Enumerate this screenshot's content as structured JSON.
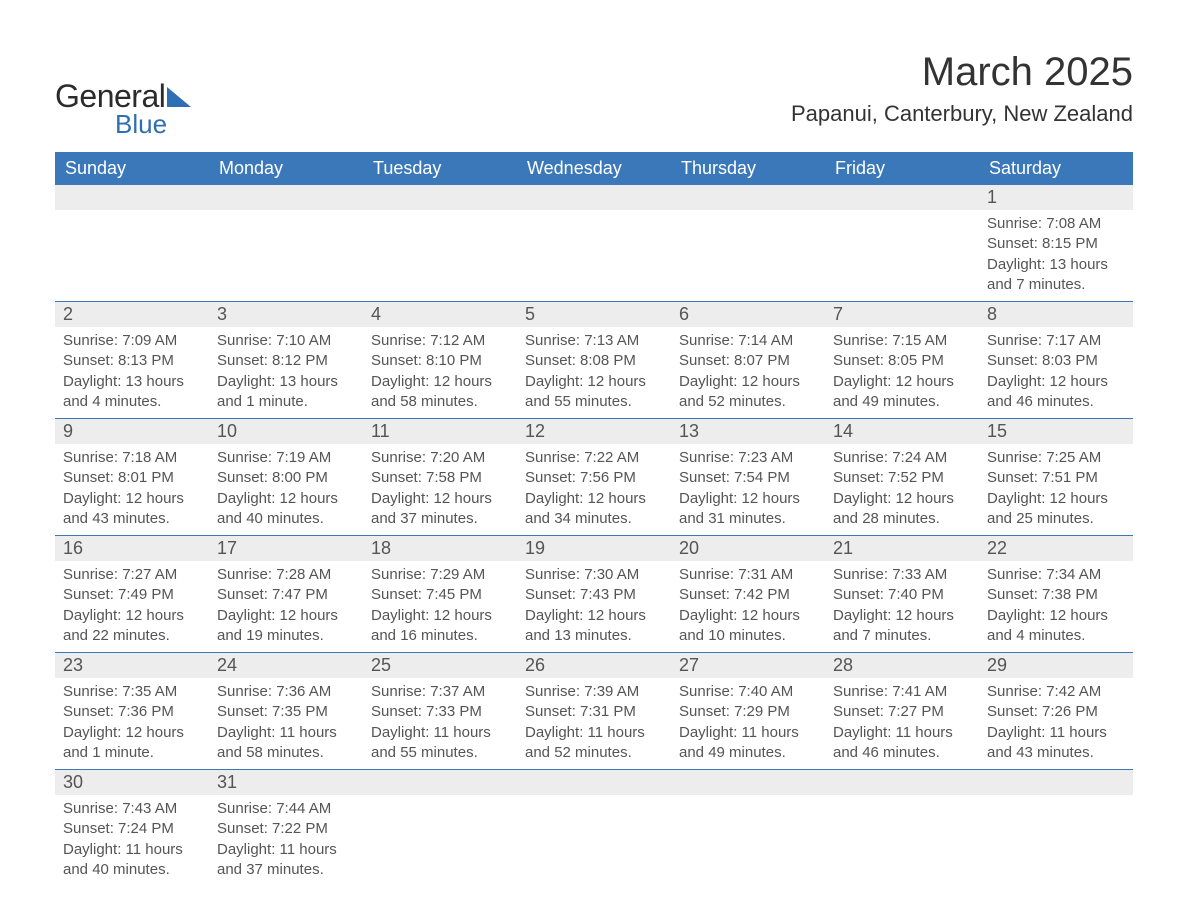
{
  "logo": {
    "text_general": "General",
    "text_blue": "Blue"
  },
  "header": {
    "month_title": "March 2025",
    "location": "Papanui, Canterbury, New Zealand"
  },
  "styling": {
    "header_bg": "#3b78ba",
    "header_text": "#ffffff",
    "daynum_bg": "#ededed",
    "text_color": "#555555",
    "row_divider": "#3b78ba",
    "page_bg": "#ffffff",
    "logo_accent": "#2f6fb3",
    "font_family": "Arial",
    "month_title_fontsize": 40,
    "location_fontsize": 22,
    "dayheader_fontsize": 18,
    "daynum_fontsize": 18,
    "detail_fontsize": 15
  },
  "day_headers": [
    "Sunday",
    "Monday",
    "Tuesday",
    "Wednesday",
    "Thursday",
    "Friday",
    "Saturday"
  ],
  "weeks": [
    [
      null,
      null,
      null,
      null,
      null,
      null,
      {
        "n": "1",
        "sr": "Sunrise: 7:08 AM",
        "ss": "Sunset: 8:15 PM",
        "dl": "Daylight: 13 hours and 7 minutes."
      }
    ],
    [
      {
        "n": "2",
        "sr": "Sunrise: 7:09 AM",
        "ss": "Sunset: 8:13 PM",
        "dl": "Daylight: 13 hours and 4 minutes."
      },
      {
        "n": "3",
        "sr": "Sunrise: 7:10 AM",
        "ss": "Sunset: 8:12 PM",
        "dl": "Daylight: 13 hours and 1 minute."
      },
      {
        "n": "4",
        "sr": "Sunrise: 7:12 AM",
        "ss": "Sunset: 8:10 PM",
        "dl": "Daylight: 12 hours and 58 minutes."
      },
      {
        "n": "5",
        "sr": "Sunrise: 7:13 AM",
        "ss": "Sunset: 8:08 PM",
        "dl": "Daylight: 12 hours and 55 minutes."
      },
      {
        "n": "6",
        "sr": "Sunrise: 7:14 AM",
        "ss": "Sunset: 8:07 PM",
        "dl": "Daylight: 12 hours and 52 minutes."
      },
      {
        "n": "7",
        "sr": "Sunrise: 7:15 AM",
        "ss": "Sunset: 8:05 PM",
        "dl": "Daylight: 12 hours and 49 minutes."
      },
      {
        "n": "8",
        "sr": "Sunrise: 7:17 AM",
        "ss": "Sunset: 8:03 PM",
        "dl": "Daylight: 12 hours and 46 minutes."
      }
    ],
    [
      {
        "n": "9",
        "sr": "Sunrise: 7:18 AM",
        "ss": "Sunset: 8:01 PM",
        "dl": "Daylight: 12 hours and 43 minutes."
      },
      {
        "n": "10",
        "sr": "Sunrise: 7:19 AM",
        "ss": "Sunset: 8:00 PM",
        "dl": "Daylight: 12 hours and 40 minutes."
      },
      {
        "n": "11",
        "sr": "Sunrise: 7:20 AM",
        "ss": "Sunset: 7:58 PM",
        "dl": "Daylight: 12 hours and 37 minutes."
      },
      {
        "n": "12",
        "sr": "Sunrise: 7:22 AM",
        "ss": "Sunset: 7:56 PM",
        "dl": "Daylight: 12 hours and 34 minutes."
      },
      {
        "n": "13",
        "sr": "Sunrise: 7:23 AM",
        "ss": "Sunset: 7:54 PM",
        "dl": "Daylight: 12 hours and 31 minutes."
      },
      {
        "n": "14",
        "sr": "Sunrise: 7:24 AM",
        "ss": "Sunset: 7:52 PM",
        "dl": "Daylight: 12 hours and 28 minutes."
      },
      {
        "n": "15",
        "sr": "Sunrise: 7:25 AM",
        "ss": "Sunset: 7:51 PM",
        "dl": "Daylight: 12 hours and 25 minutes."
      }
    ],
    [
      {
        "n": "16",
        "sr": "Sunrise: 7:27 AM",
        "ss": "Sunset: 7:49 PM",
        "dl": "Daylight: 12 hours and 22 minutes."
      },
      {
        "n": "17",
        "sr": "Sunrise: 7:28 AM",
        "ss": "Sunset: 7:47 PM",
        "dl": "Daylight: 12 hours and 19 minutes."
      },
      {
        "n": "18",
        "sr": "Sunrise: 7:29 AM",
        "ss": "Sunset: 7:45 PM",
        "dl": "Daylight: 12 hours and 16 minutes."
      },
      {
        "n": "19",
        "sr": "Sunrise: 7:30 AM",
        "ss": "Sunset: 7:43 PM",
        "dl": "Daylight: 12 hours and 13 minutes."
      },
      {
        "n": "20",
        "sr": "Sunrise: 7:31 AM",
        "ss": "Sunset: 7:42 PM",
        "dl": "Daylight: 12 hours and 10 minutes."
      },
      {
        "n": "21",
        "sr": "Sunrise: 7:33 AM",
        "ss": "Sunset: 7:40 PM",
        "dl": "Daylight: 12 hours and 7 minutes."
      },
      {
        "n": "22",
        "sr": "Sunrise: 7:34 AM",
        "ss": "Sunset: 7:38 PM",
        "dl": "Daylight: 12 hours and 4 minutes."
      }
    ],
    [
      {
        "n": "23",
        "sr": "Sunrise: 7:35 AM",
        "ss": "Sunset: 7:36 PM",
        "dl": "Daylight: 12 hours and 1 minute."
      },
      {
        "n": "24",
        "sr": "Sunrise: 7:36 AM",
        "ss": "Sunset: 7:35 PM",
        "dl": "Daylight: 11 hours and 58 minutes."
      },
      {
        "n": "25",
        "sr": "Sunrise: 7:37 AM",
        "ss": "Sunset: 7:33 PM",
        "dl": "Daylight: 11 hours and 55 minutes."
      },
      {
        "n": "26",
        "sr": "Sunrise: 7:39 AM",
        "ss": "Sunset: 7:31 PM",
        "dl": "Daylight: 11 hours and 52 minutes."
      },
      {
        "n": "27",
        "sr": "Sunrise: 7:40 AM",
        "ss": "Sunset: 7:29 PM",
        "dl": "Daylight: 11 hours and 49 minutes."
      },
      {
        "n": "28",
        "sr": "Sunrise: 7:41 AM",
        "ss": "Sunset: 7:27 PM",
        "dl": "Daylight: 11 hours and 46 minutes."
      },
      {
        "n": "29",
        "sr": "Sunrise: 7:42 AM",
        "ss": "Sunset: 7:26 PM",
        "dl": "Daylight: 11 hours and 43 minutes."
      }
    ],
    [
      {
        "n": "30",
        "sr": "Sunrise: 7:43 AM",
        "ss": "Sunset: 7:24 PM",
        "dl": "Daylight: 11 hours and 40 minutes."
      },
      {
        "n": "31",
        "sr": "Sunrise: 7:44 AM",
        "ss": "Sunset: 7:22 PM",
        "dl": "Daylight: 11 hours and 37 minutes."
      },
      null,
      null,
      null,
      null,
      null
    ]
  ]
}
